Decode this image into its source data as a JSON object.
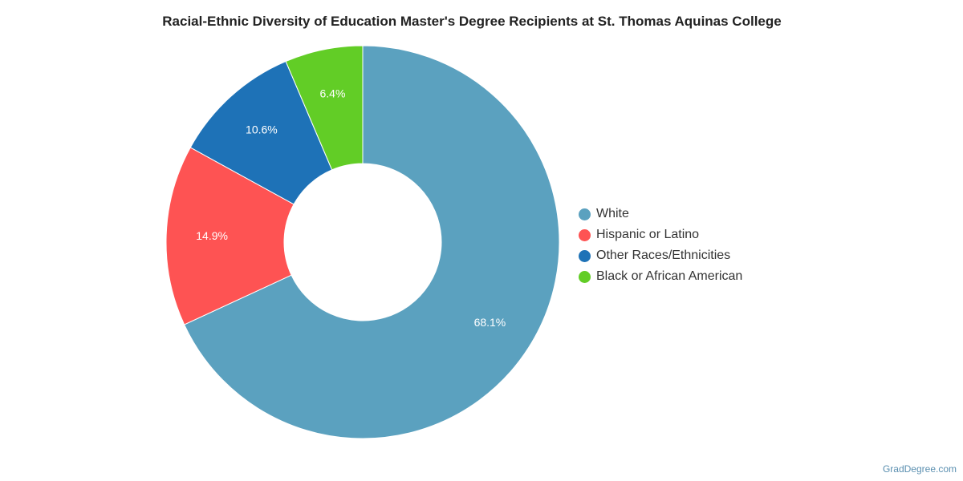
{
  "chart_data": {
    "type": "pie",
    "title": "Racial-Ethnic Diversity of Education Master's Degree Recipients at St. Thomas Aquinas College",
    "categories": [
      "White",
      "Hispanic or Latino",
      "Other Races/Ethnicities",
      "Black or African American"
    ],
    "values": [
      68.1,
      14.9,
      10.6,
      6.4
    ],
    "value_labels": [
      "68.1%",
      "14.9%",
      "10.6%",
      "6.4%"
    ],
    "unit": "%",
    "colors": [
      "#5ba1bf",
      "#fe5353",
      "#1e72b7",
      "#62cd26"
    ],
    "donut": true,
    "legend_position": "right"
  },
  "credit": "GradDegree.com"
}
